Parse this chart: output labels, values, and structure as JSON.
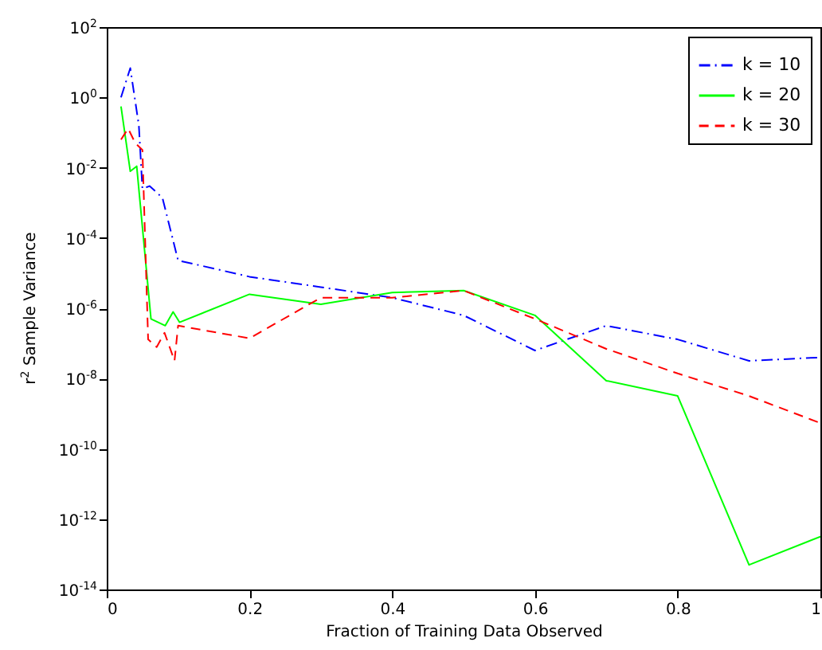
{
  "chart_data": {
    "type": "line",
    "xlabel": "Fraction of Training Data Observed",
    "ylabel": "r$^{2}$ Sample Variance",
    "log": "y",
    "legend": "top right",
    "xlim": [
      0,
      1
    ],
    "xticks": [
      0,
      0.2,
      0.4,
      0.6,
      0.8,
      1
    ],
    "ylim": [
      1e-14,
      100
    ],
    "yticks": [
      {
        "value": 1e-14,
        "label": "10$^{-14}$"
      },
      {
        "value": 1e-12,
        "label": "10$^{-12}$"
      },
      {
        "value": 1e-10,
        "label": "10$^{-10}$"
      },
      {
        "value": 1e-08,
        "label": "10$^{-8}$"
      },
      {
        "value": 1e-06,
        "label": "10$^{-6}$"
      },
      {
        "value": 0.0001,
        "label": "10$^{-4}$"
      },
      {
        "value": 0.01,
        "label": "10$^{-2}$"
      },
      {
        "value": 1,
        "label": "10$^{0}$"
      },
      {
        "value": 100,
        "label": "10$^{2}$"
      }
    ],
    "series": [
      {
        "name": "k = 10",
        "color": "#0000ff",
        "line_style": "dashdot",
        "x": [
          0.02,
          0.033,
          0.045,
          0.05,
          0.06,
          0.078,
          0.1,
          0.2,
          0.3,
          0.4,
          0.5,
          0.6,
          0.7,
          0.8,
          0.9,
          1
        ],
        "values": [
          1,
          6.8,
          0.16,
          0.0025,
          0.003,
          0.0014,
          2.3e-05,
          7.9e-06,
          4e-06,
          2e-06,
          6.3e-07,
          6.3e-08,
          3.2e-07,
          1.3e-07,
          3.2e-08,
          4e-08
        ]
      },
      {
        "name": "k = 20",
        "color": "#00ff00",
        "line_style": "solid",
        "x": [
          0.02,
          0.033,
          0.042,
          0.062,
          0.082,
          0.093,
          0.102,
          0.2,
          0.3,
          0.4,
          0.5,
          0.6,
          0.7,
          0.8,
          0.9,
          1
        ],
        "values": [
          0.55,
          0.0079,
          0.011,
          5e-07,
          3.2e-07,
          7.9e-07,
          4e-07,
          2.5e-06,
          1.3e-06,
          2.8e-06,
          3.2e-06,
          6.3e-07,
          8.7e-09,
          3.2e-09,
          5e-14,
          3.2e-13
        ]
      },
      {
        "name": "k = 30",
        "color": "#ff0000",
        "line_style": "dashed",
        "x": [
          0.02,
          0.03,
          0.04,
          0.05,
          0.058,
          0.07,
          0.081,
          0.095,
          0.1,
          0.2,
          0.3,
          0.4,
          0.5,
          0.6,
          0.7,
          0.8,
          0.9,
          1
        ],
        "values": [
          0.063,
          0.13,
          0.05,
          0.032,
          1.3e-07,
          7.9e-08,
          2e-07,
          3.2e-08,
          3.2e-07,
          1.4e-07,
          2e-06,
          2e-06,
          3.2e-06,
          5e-07,
          7e-08,
          1.4e-08,
          3.2e-09,
          5.4e-10
        ]
      }
    ]
  }
}
